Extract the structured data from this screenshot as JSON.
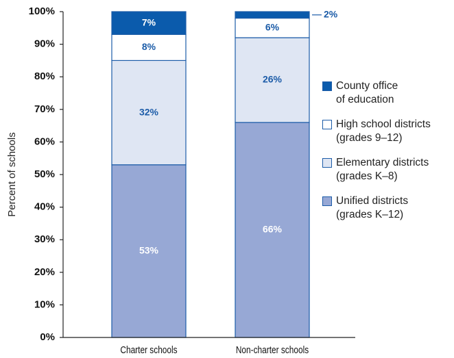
{
  "chart_data": {
    "type": "stacked_bar",
    "categories": [
      "Charter schools",
      "Non-charter schools"
    ],
    "y_label": "Percent of schools",
    "ylim": [
      0,
      100
    ],
    "yticks": [
      {
        "value": 0,
        "label": "0%"
      },
      {
        "value": 10,
        "label": "10%"
      },
      {
        "value": 20,
        "label": "20%"
      },
      {
        "value": 30,
        "label": "30%"
      },
      {
        "value": 40,
        "label": "40%"
      },
      {
        "value": 50,
        "label": "50%"
      },
      {
        "value": 60,
        "label": "60%"
      },
      {
        "value": 70,
        "label": "70%"
      },
      {
        "value": 80,
        "label": "80%"
      },
      {
        "value": 90,
        "label": "90%"
      },
      {
        "value": 100,
        "label": "100%"
      }
    ],
    "series": [
      {
        "name": "Unified districts\n(grades K–12)",
        "color": "#97a8d5",
        "values": [
          53,
          66
        ],
        "value_labels": [
          "53%",
          "66%"
        ]
      },
      {
        "name": "Elementary districts\n(grades K–8)",
        "color": "#dfe6f3",
        "values": [
          32,
          26
        ],
        "value_labels": [
          "32%",
          "26%"
        ]
      },
      {
        "name": "High school districts\n(grades 9–12)",
        "color": "#ffffff",
        "values": [
          8,
          6
        ],
        "value_labels": [
          "8%",
          "6%"
        ]
      },
      {
        "name": "County office\nof education",
        "color": "#0b5bac",
        "values": [
          7,
          2
        ],
        "value_labels": [
          "7%",
          "2%"
        ]
      }
    ]
  }
}
